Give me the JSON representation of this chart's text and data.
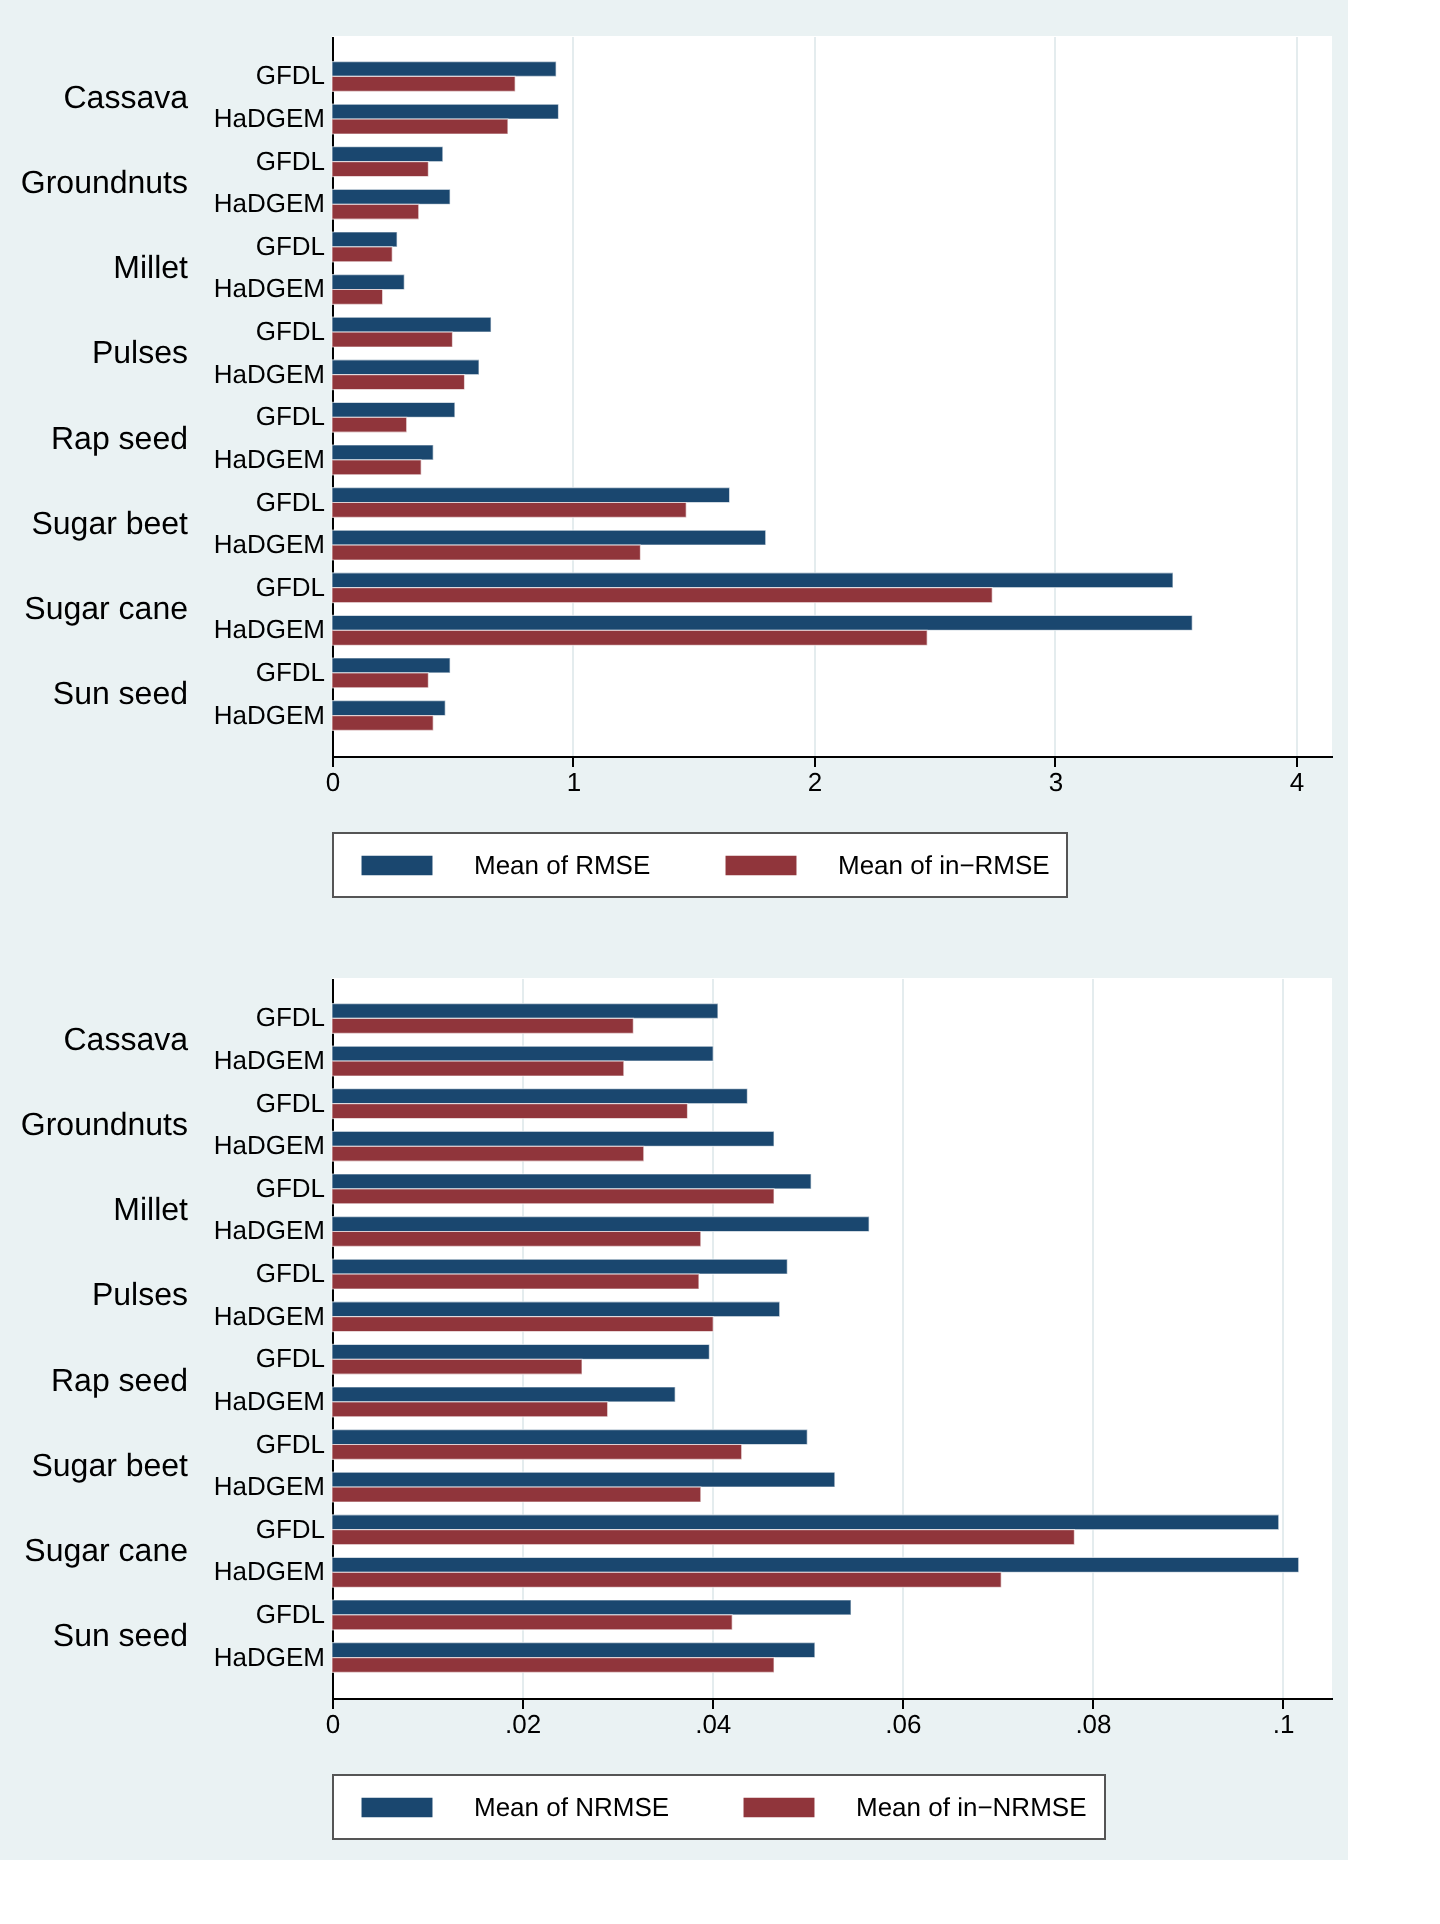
{
  "chart_data": [
    {
      "type": "bar",
      "orientation": "horizontal",
      "categories": [
        "GFDL",
        "HaDGEM",
        "GFDL",
        "HaDGEM",
        "GFDL",
        "HaDGEM",
        "GFDL",
        "HaDGEM",
        "GFDL",
        "HaDGEM",
        "GFDL",
        "HaDGEM",
        "GFDL",
        "HaDGEM",
        "GFDL",
        "HaDGEM"
      ],
      "annotations": [
        "Cassava",
        "Groundnuts",
        "Millet",
        "Pulses",
        "Rap seed",
        "Sugar beet",
        "Sugar cane",
        "Sun seed"
      ],
      "series": [
        {
          "name": "Mean of RMSE",
          "color": "#1a476f",
          "values": [
            0.93,
            0.94,
            0.46,
            0.49,
            0.27,
            0.3,
            0.66,
            0.61,
            0.51,
            0.42,
            1.65,
            1.8,
            3.49,
            3.57,
            0.49,
            0.47
          ]
        },
        {
          "name": "Mean of in−RMSE",
          "color": "#90353b",
          "values": [
            0.76,
            0.73,
            0.4,
            0.36,
            0.25,
            0.21,
            0.5,
            0.55,
            0.31,
            0.37,
            1.47,
            1.28,
            2.74,
            2.47,
            0.4,
            0.42
          ]
        }
      ],
      "xlim": [
        0,
        4.15
      ],
      "xticks": [
        0,
        1,
        2,
        3,
        4
      ],
      "grid": "x",
      "legend": "bottom"
    },
    {
      "type": "bar",
      "orientation": "horizontal",
      "categories": [
        "GFDL",
        "HaDGEM",
        "GFDL",
        "HaDGEM",
        "GFDL",
        "HaDGEM",
        "GFDL",
        "HaDGEM",
        "GFDL",
        "HaDGEM",
        "GFDL",
        "HaDGEM",
        "GFDL",
        "HaDGEM",
        "GFDL",
        "HaDGEM"
      ],
      "annotations": [
        "Cassava",
        "Groundnuts",
        "Millet",
        "Pulses",
        "Rap seed",
        "Sugar beet",
        "Sugar cane",
        "Sun seed"
      ],
      "series": [
        {
          "name": "Mean of NRMSE",
          "color": "#1a476f",
          "values": [
            0.0406,
            0.0401,
            0.0437,
            0.0465,
            0.0504,
            0.0565,
            0.0479,
            0.0471,
            0.0397,
            0.0361,
            0.05,
            0.0529,
            0.0996,
            0.1017,
            0.0546,
            0.0508
          ]
        },
        {
          "name": "Mean of in−NRMSE",
          "color": "#90353b",
          "values": [
            0.0317,
            0.0307,
            0.0374,
            0.0328,
            0.0465,
            0.0388,
            0.0386,
            0.0401,
            0.0263,
            0.029,
            0.0431,
            0.0388,
            0.0781,
            0.0704,
            0.0421,
            0.0465
          ]
        }
      ],
      "xlim": [
        0,
        0.1052
      ],
      "xticks": [
        0,
        {
          "value": 0.02,
          "label": ".02"
        },
        {
          "value": 0.04,
          "label": ".04"
        },
        {
          "value": 0.06,
          "label": ".06"
        },
        {
          "value": 0.08,
          "label": ".08"
        },
        {
          "value": 0.1,
          "label": ".1"
        }
      ],
      "grid": "x",
      "legend": "bottom"
    }
  ]
}
